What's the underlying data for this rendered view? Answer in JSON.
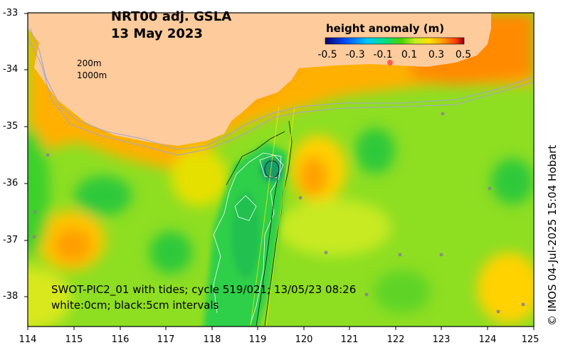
{
  "map": {
    "title_line1": "NRT00 adj. GSLA",
    "title_line2": "13 May 2023",
    "colorbar": {
      "label": "height anomaly (m)",
      "ticks": [
        "-0.5",
        "-0.3",
        "-0.1",
        "0.1",
        "0.3",
        "0.5"
      ],
      "range": [
        -0.5,
        0.5
      ],
      "colors": [
        "#08006e",
        "#0050ff",
        "#00c8ff",
        "#00e08c",
        "#4cd200",
        "#c8ee22",
        "#ffe000",
        "#ff9a00",
        "#ff3c00",
        "#8c0000"
      ]
    },
    "contour_labels": [
      "200m",
      "1000m"
    ],
    "y_ticks": [
      "-33",
      "-34",
      "-35",
      "-36",
      "-37",
      "-38"
    ],
    "x_ticks": [
      "114",
      "115",
      "116",
      "117",
      "118",
      "119",
      "120",
      "121",
      "122",
      "123",
      "124",
      "125"
    ],
    "annotation_line1": "SWOT-PIC2_01 with tides; cycle 519/021; 13/05/23 08:26",
    "annotation_line2": "white:0cm; black:5cm intervals",
    "credit": "© IMOS 04-Jul-2025 15:04 Hobart",
    "land_color": "#fdcb9c",
    "ocean_base_color": "#8ede22"
  }
}
